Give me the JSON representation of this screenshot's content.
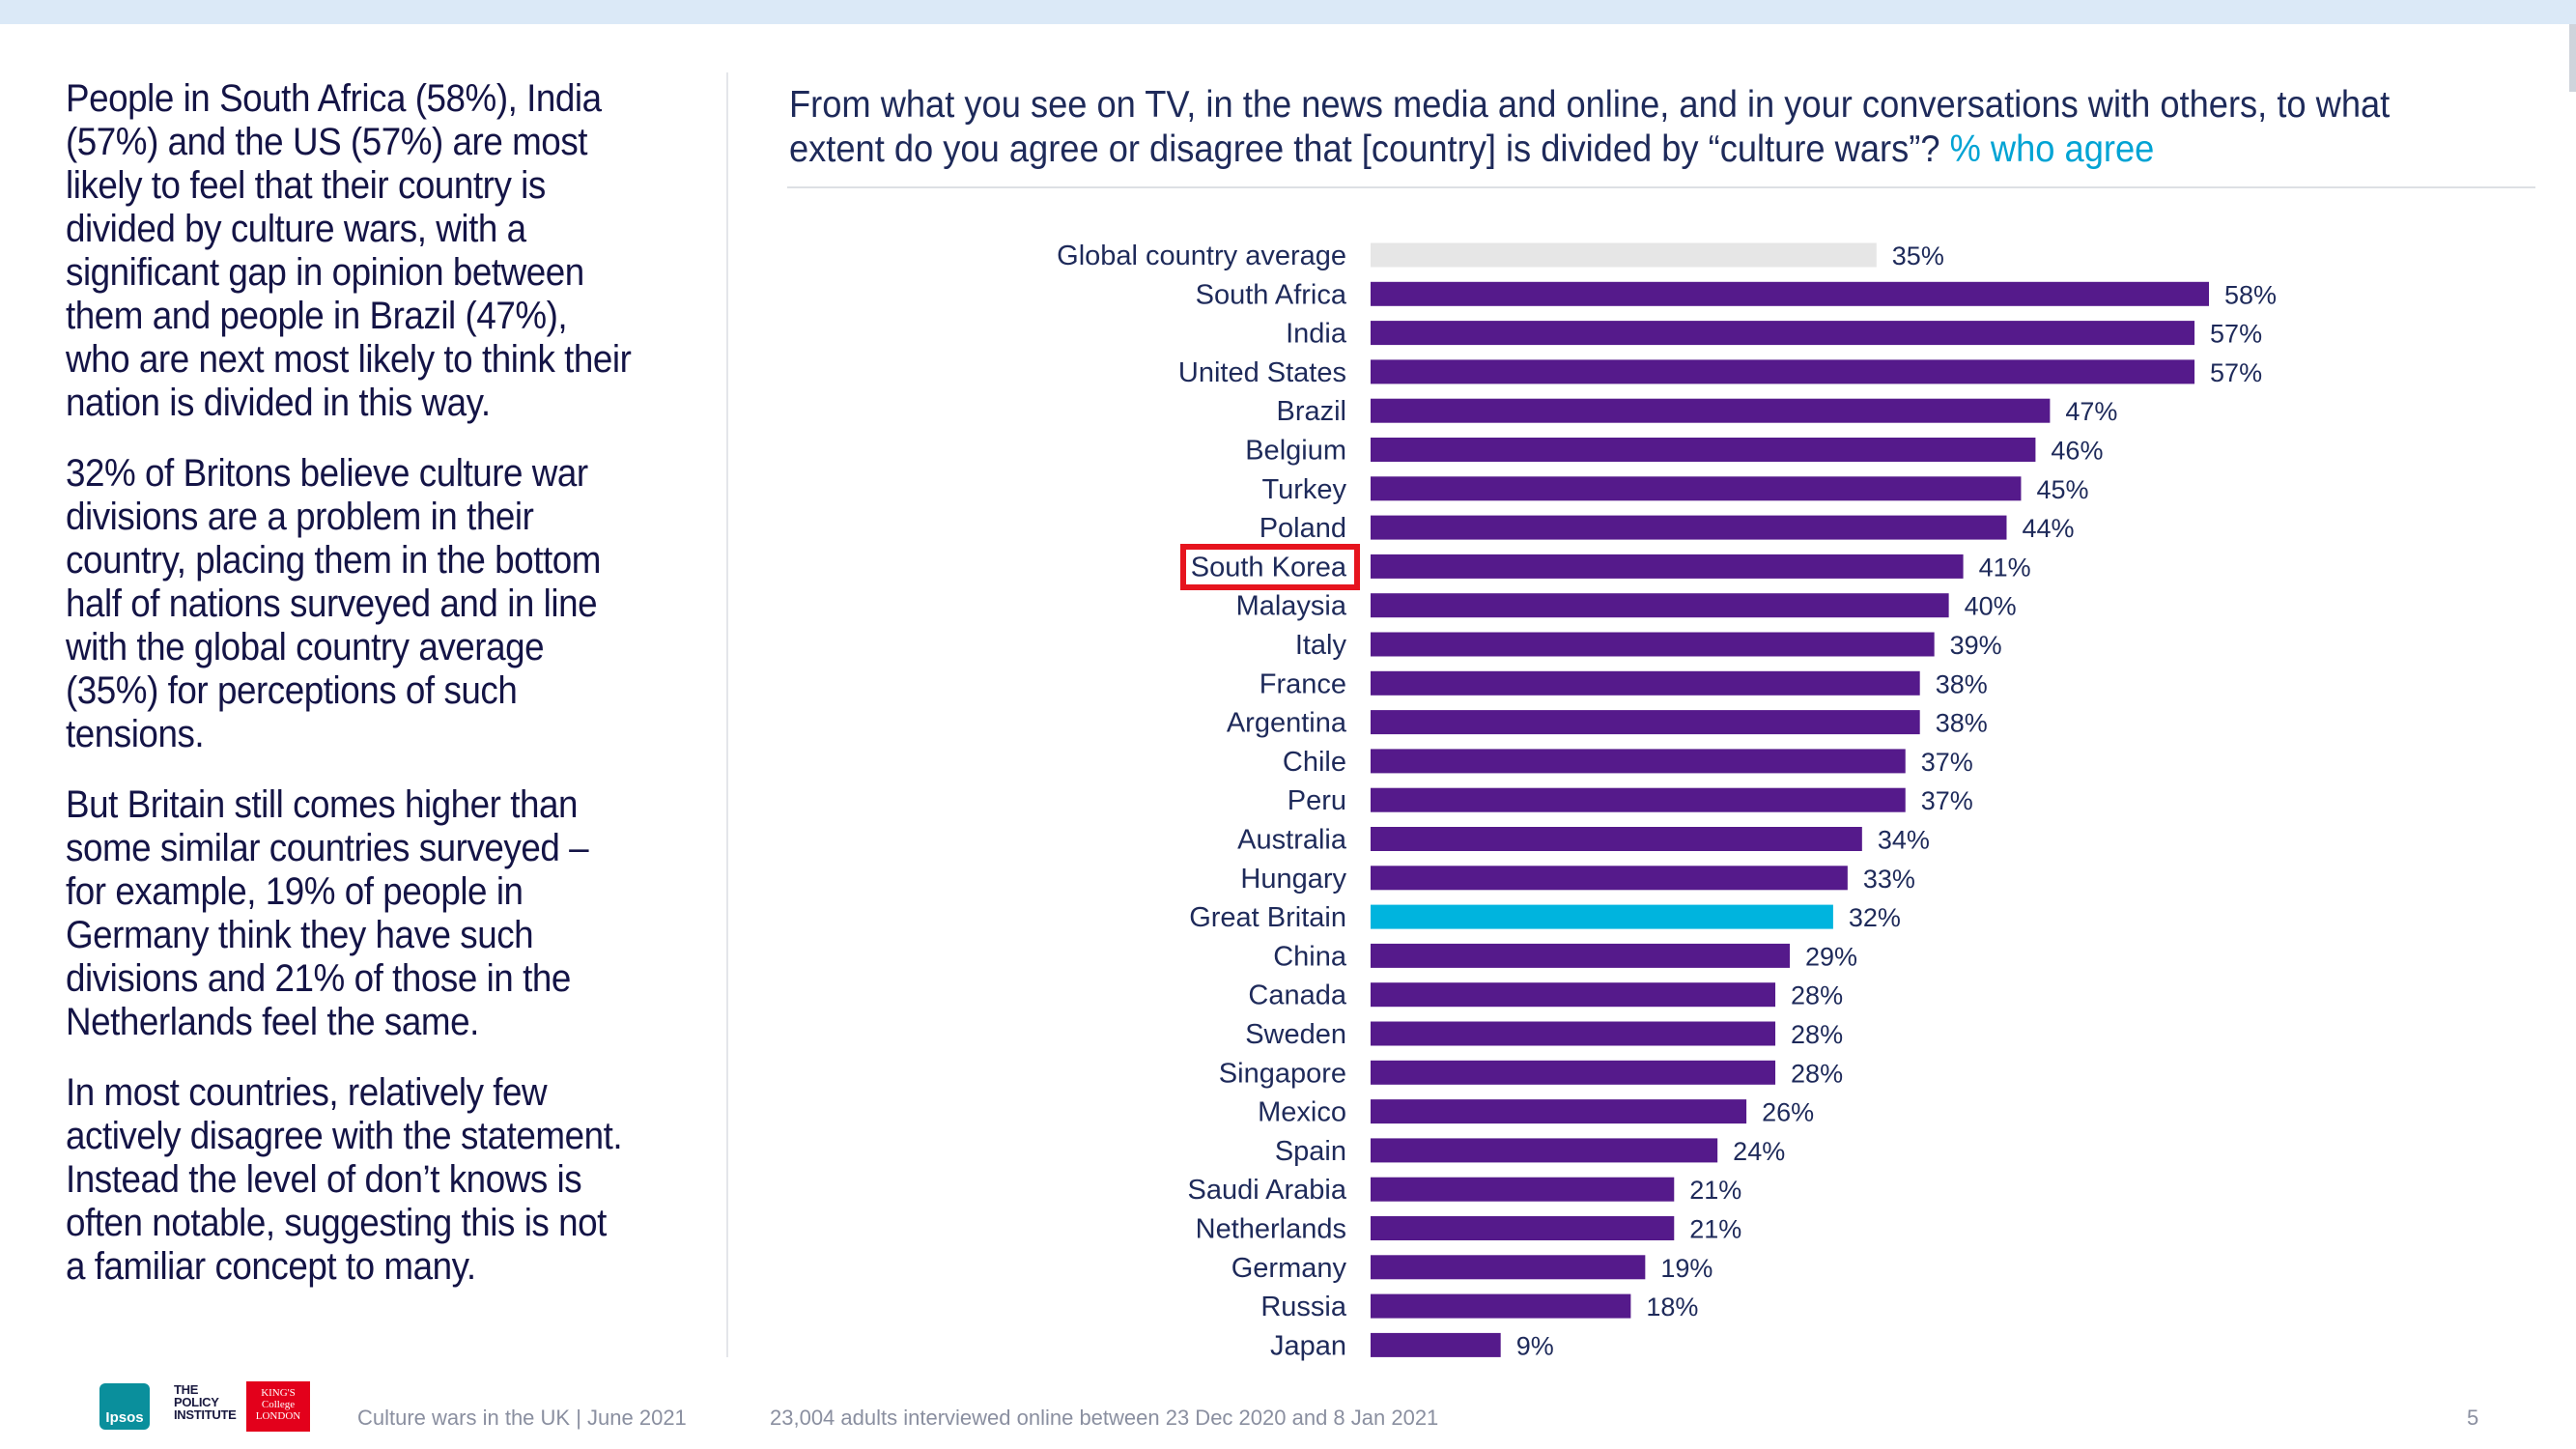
{
  "commentary": [
    "People in South Africa (58%), India (57%) and the US (57%) are most likely to feel that their country is divided by culture wars, with a significant gap in opinion between them and people in Brazil (47%), who are next most likely to think their nation is divided in this way.",
    "32% of Britons believe culture war divisions are a problem in their country, placing them in the bottom half of nations surveyed and in line with the global country average (35%) for perceptions of such tensions.",
    "But Britain still comes higher than some similar countries surveyed – for example, 19% of people in Germany think they have such divisions and 21% of those in the Netherlands feel the same.",
    "In most countries, relatively few actively disagree with the statement.  Instead the level of don’t knows is often notable, suggesting this is not a familiar concept to many."
  ],
  "question": {
    "text": "From what you see on TV, in the news media and online, and in your conversations with others, to what extent do you agree or disagree that [country] is divided by “culture wars”?",
    "accent": "% who agree"
  },
  "highlighted_category": "South Korea",
  "colors": {
    "bar": "#551a8b",
    "average": "#e6e6e6",
    "great_britain": "#00b4de",
    "highlight_box": "#e6141e"
  },
  "chart_data": {
    "type": "bar",
    "orientation": "horizontal",
    "categories": [
      "Global country average",
      "South Africa",
      "India",
      "United States",
      "Brazil",
      "Belgium",
      "Turkey",
      "Poland",
      "South Korea",
      "Malaysia",
      "Italy",
      "France",
      "Argentina",
      "Chile",
      "Peru",
      "Australia",
      "Hungary",
      "Great Britain",
      "China",
      "Canada",
      "Sweden",
      "Singapore",
      "Mexico",
      "Spain",
      "Saudi Arabia",
      "Netherlands",
      "Germany",
      "Russia",
      "Japan"
    ],
    "values": [
      35,
      58,
      57,
      57,
      47,
      46,
      45,
      44,
      41,
      40,
      39,
      38,
      38,
      37,
      37,
      34,
      33,
      32,
      29,
      28,
      28,
      28,
      26,
      24,
      21,
      21,
      19,
      18,
      9
    ],
    "value_labels": [
      "35%",
      "58%",
      "57%",
      "57%",
      "47%",
      "46%",
      "45%",
      "44%",
      "41%",
      "40%",
      "39%",
      "38%",
      "38%",
      "37%",
      "37%",
      "34%",
      "33%",
      "32%",
      "29%",
      "28%",
      "28%",
      "28%",
      "26%",
      "24%",
      "21%",
      "21%",
      "19%",
      "18%",
      "9%"
    ],
    "unit": "%",
    "xlim": [
      0,
      58
    ],
    "grid": false,
    "legend": "none",
    "title": "",
    "xlabel": "",
    "ylabel": ""
  },
  "footer": {
    "logos": [
      "Ipsos",
      "THE POLICY INSTITUTE",
      "KING'S College LONDON"
    ],
    "publication": "Culture wars in the UK | June 2021",
    "sample_note": "23,004 adults interviewed online between 23 Dec 2020 and 8 Jan 2021",
    "page_number": "5"
  }
}
